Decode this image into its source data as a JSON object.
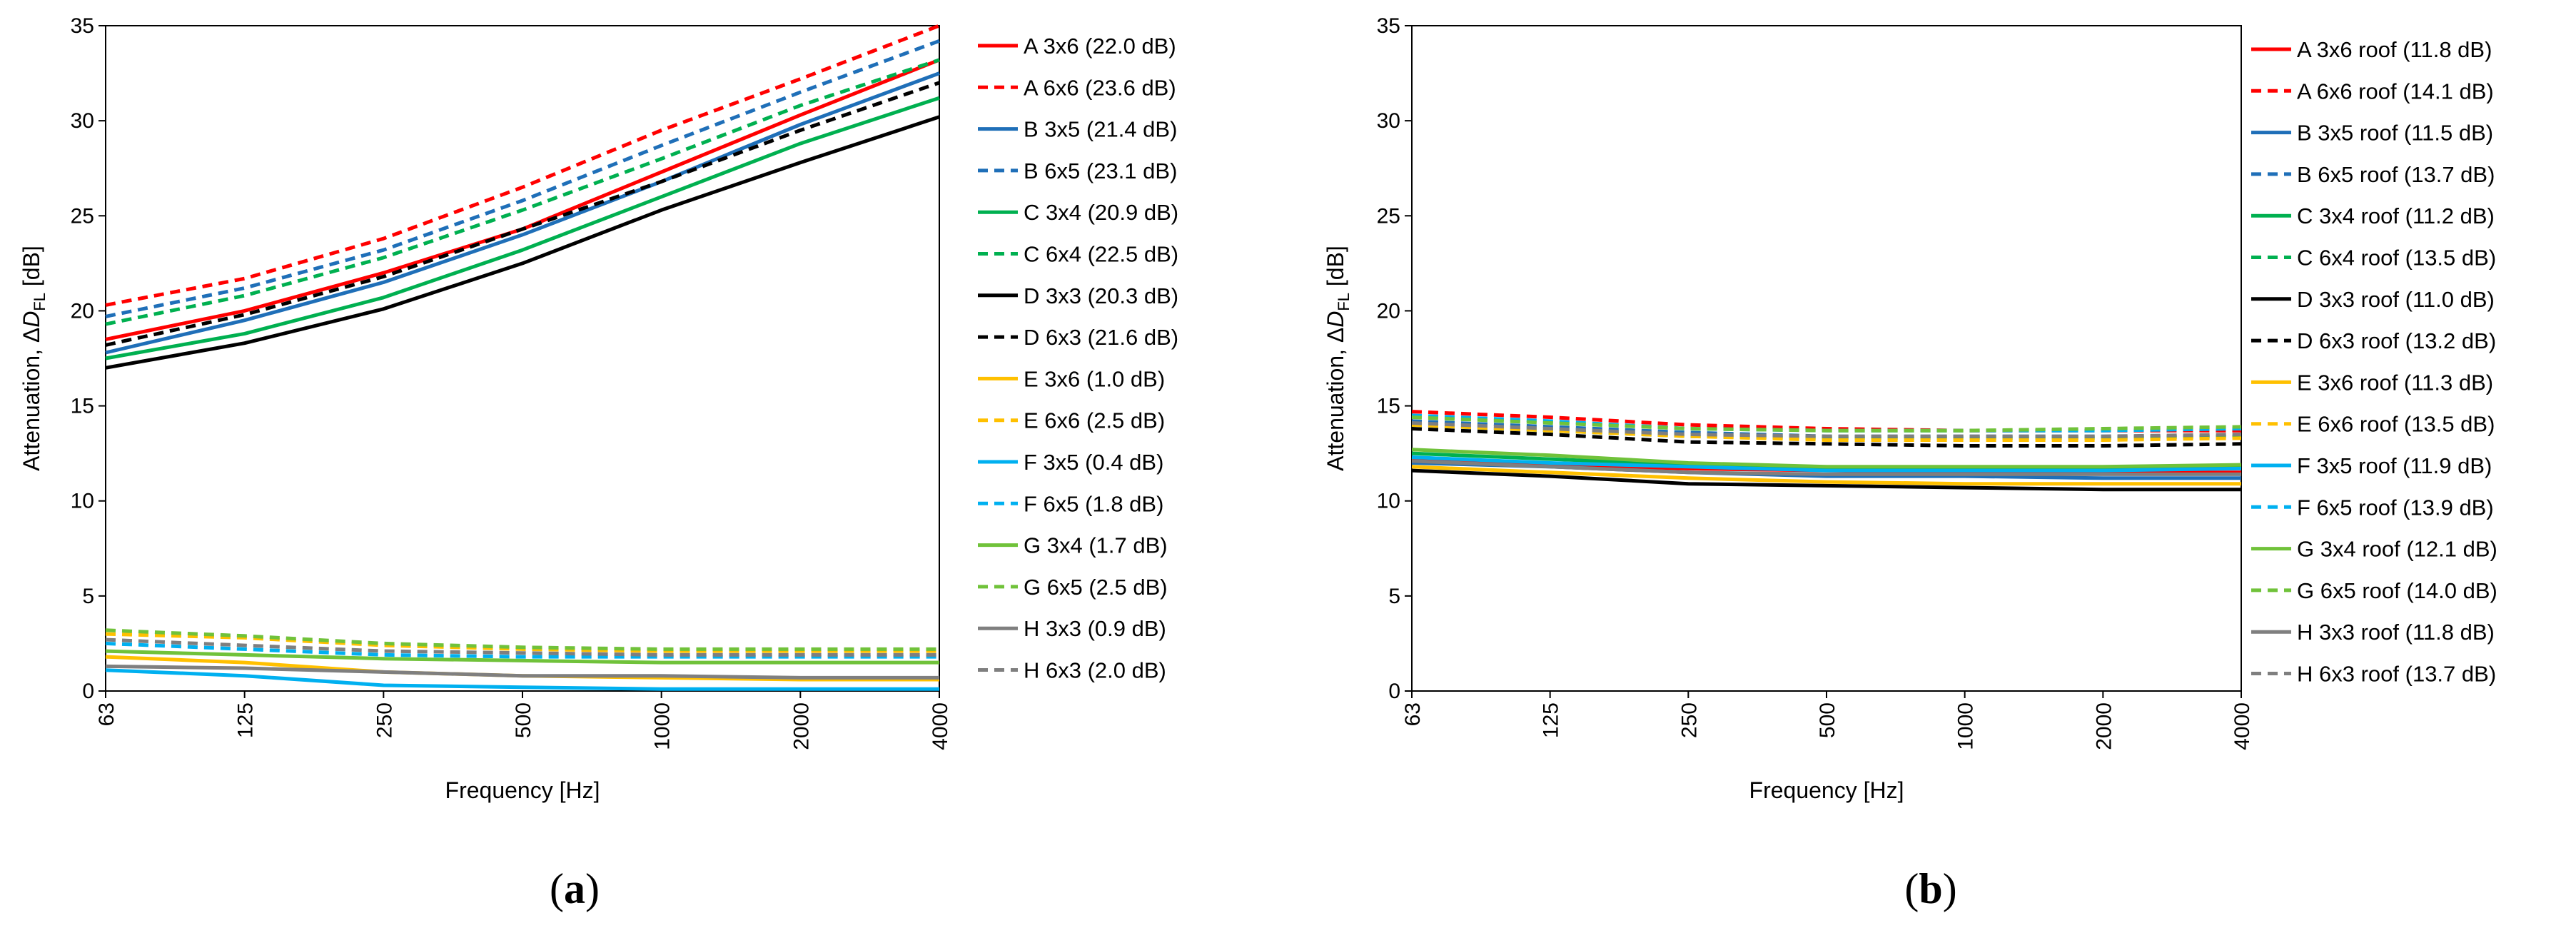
{
  "chart_data": [
    {
      "type": "line",
      "panel_label": "(a)",
      "panel_letter": "a",
      "xlabel": "Frequency [Hz]",
      "ylabel": "Attenuation, ΔD",
      "ylabel_sub": "FL",
      "ylabel_unit": " [dB]",
      "ylim": [
        0,
        35
      ],
      "yticks": [
        0,
        5,
        10,
        15,
        20,
        25,
        30,
        35
      ],
      "categories": [
        "63",
        "125",
        "250",
        "500",
        "1000",
        "2000",
        "4000"
      ],
      "legend_position": "right",
      "series": [
        {
          "name": "A 3x6 (22.0 dB)",
          "color": "#ff0000",
          "dash": false,
          "values": [
            18.5,
            20.0,
            22.0,
            24.3,
            27.3,
            30.3,
            33.2
          ]
        },
        {
          "name": "A 6x6 (23.6 dB)",
          "color": "#ff0000",
          "dash": true,
          "values": [
            20.3,
            21.7,
            23.8,
            26.5,
            29.5,
            32.2,
            35.0
          ]
        },
        {
          "name": "B 3x5 (21.4 dB)",
          "color": "#1f6fb8",
          "dash": false,
          "values": [
            17.8,
            19.5,
            21.5,
            24.0,
            26.8,
            29.8,
            32.5
          ]
        },
        {
          "name": "B 6x5 (23.1 dB)",
          "color": "#1f6fb8",
          "dash": true,
          "values": [
            19.7,
            21.2,
            23.2,
            25.8,
            28.7,
            31.5,
            34.2
          ]
        },
        {
          "name": "C 3x4 (20.9 dB)",
          "color": "#00b050",
          "dash": false,
          "values": [
            17.5,
            18.8,
            20.7,
            23.2,
            26.0,
            28.8,
            31.2
          ]
        },
        {
          "name": "C 6x4 (22.5 dB)",
          "color": "#00b050",
          "dash": true,
          "values": [
            19.3,
            20.8,
            22.8,
            25.3,
            28.0,
            30.8,
            33.2
          ]
        },
        {
          "name": "D 3x3 (20.3 dB)",
          "color": "#000000",
          "dash": false,
          "values": [
            17.0,
            18.3,
            20.1,
            22.5,
            25.3,
            27.8,
            30.2
          ]
        },
        {
          "name": "D 6x3 (21.6 dB)",
          "color": "#000000",
          "dash": true,
          "values": [
            18.2,
            19.8,
            21.8,
            24.3,
            26.8,
            29.5,
            32.0
          ]
        },
        {
          "name": "E 3x6 (1.0 dB)",
          "color": "#ffc000",
          "dash": false,
          "values": [
            1.8,
            1.5,
            1.0,
            0.8,
            0.7,
            0.6,
            0.6
          ]
        },
        {
          "name": "E 6x6 (2.5 dB)",
          "color": "#ffc000",
          "dash": true,
          "values": [
            3.0,
            2.8,
            2.4,
            2.2,
            2.1,
            2.1,
            2.1
          ]
        },
        {
          "name": "F 3x5 (0.4 dB)",
          "color": "#00b0f0",
          "dash": false,
          "values": [
            1.1,
            0.8,
            0.3,
            0.2,
            0.1,
            0.1,
            0.1
          ]
        },
        {
          "name": "F 6x5 (1.8 dB)",
          "color": "#00b0f0",
          "dash": true,
          "values": [
            2.5,
            2.2,
            1.9,
            1.8,
            1.8,
            1.8,
            1.8
          ]
        },
        {
          "name": "G 3x4  (1.7 dB)",
          "color": "#70c23a",
          "dash": false,
          "values": [
            2.1,
            1.9,
            1.7,
            1.6,
            1.5,
            1.5,
            1.5
          ]
        },
        {
          "name": "G 6x5 (2.5 dB)",
          "color": "#70c23a",
          "dash": true,
          "values": [
            3.2,
            2.9,
            2.5,
            2.3,
            2.2,
            2.2,
            2.2
          ]
        },
        {
          "name": "H 3x3 (0.9 dB)",
          "color": "#7f7f7f",
          "dash": false,
          "values": [
            1.3,
            1.2,
            1.0,
            0.8,
            0.8,
            0.7,
            0.7
          ]
        },
        {
          "name": "H 6x3 (2.0 dB)",
          "color": "#7f7f7f",
          "dash": true,
          "values": [
            2.7,
            2.4,
            2.1,
            2.0,
            1.9,
            1.9,
            1.9
          ]
        }
      ]
    },
    {
      "type": "line",
      "panel_label": "(b)",
      "panel_letter": "b",
      "xlabel": "Frequency [Hz]",
      "ylabel": "Attenuation, ΔD",
      "ylabel_sub": "FL",
      "ylabel_unit": " [dB]",
      "ylim": [
        0,
        35
      ],
      "yticks": [
        0,
        5,
        10,
        15,
        20,
        25,
        30,
        35
      ],
      "categories": [
        "63",
        "125",
        "250",
        "500",
        "1000",
        "2000",
        "4000"
      ],
      "legend_position": "right",
      "series": [
        {
          "name": "A 3x6 roof (11.8 dB)",
          "color": "#ff0000",
          "dash": false,
          "values": [
            12.2,
            11.9,
            11.7,
            11.6,
            11.5,
            11.5,
            11.5
          ]
        },
        {
          "name": "A 6x6 roof (14.1 dB)",
          "color": "#ff0000",
          "dash": true,
          "values": [
            14.7,
            14.4,
            14.0,
            13.8,
            13.7,
            13.7,
            13.7
          ]
        },
        {
          "name": "B 3x5 roof (11.5 dB)",
          "color": "#1f6fb8",
          "dash": false,
          "values": [
            12.0,
            11.8,
            11.5,
            11.3,
            11.3,
            11.2,
            11.2
          ]
        },
        {
          "name": "B 6x5 roof (13.7 dB)",
          "color": "#1f6fb8",
          "dash": true,
          "values": [
            14.2,
            13.9,
            13.6,
            13.4,
            13.4,
            13.4,
            13.4
          ]
        },
        {
          "name": "C 3x4 roof (11.2 dB)",
          "color": "#00b050",
          "dash": false,
          "values": [
            12.5,
            12.2,
            11.9,
            11.7,
            11.7,
            11.7,
            11.8
          ]
        },
        {
          "name": "C 6x4 roof (13.5 dB)",
          "color": "#00b050",
          "dash": true,
          "values": [
            14.0,
            13.7,
            13.4,
            13.3,
            13.3,
            13.3,
            13.4
          ]
        },
        {
          "name": "D 3x3 roof (11.0 dB)",
          "color": "#000000",
          "dash": false,
          "values": [
            11.6,
            11.3,
            10.9,
            10.8,
            10.7,
            10.6,
            10.6
          ]
        },
        {
          "name": "D 6x3 roof (13.2 dB)",
          "color": "#000000",
          "dash": true,
          "values": [
            13.8,
            13.5,
            13.1,
            13.0,
            12.9,
            12.9,
            13.0
          ]
        },
        {
          "name": "E 3x6 roof (11.3 dB)",
          "color": "#ffc000",
          "dash": false,
          "values": [
            11.8,
            11.5,
            11.2,
            11.0,
            10.9,
            10.9,
            10.9
          ]
        },
        {
          "name": "E 6x6 roof (13.5 dB)",
          "color": "#ffc000",
          "dash": true,
          "values": [
            14.0,
            13.7,
            13.4,
            13.2,
            13.2,
            13.2,
            13.3
          ]
        },
        {
          "name": "F 3x5 roof (11.9 dB)",
          "color": "#00b0f0",
          "dash": false,
          "values": [
            12.3,
            12.0,
            11.8,
            11.6,
            11.6,
            11.6,
            11.7
          ]
        },
        {
          "name": "F 6x5 roof (13.9 dB)",
          "color": "#00b0f0",
          "dash": true,
          "values": [
            14.5,
            14.2,
            13.8,
            13.7,
            13.7,
            13.7,
            13.8
          ]
        },
        {
          "name": "G 3x4 roof (12.1 dB)",
          "color": "#70c23a",
          "dash": false,
          "values": [
            12.7,
            12.4,
            12.0,
            11.8,
            11.8,
            11.8,
            11.9
          ]
        },
        {
          "name": "G 6x5 roof (14.0 dB)",
          "color": "#70c23a",
          "dash": true,
          "values": [
            14.4,
            14.1,
            13.8,
            13.7,
            13.7,
            13.8,
            13.9
          ]
        },
        {
          "name": "H 3x3 roof (11.8 dB)",
          "color": "#7f7f7f",
          "dash": false,
          "values": [
            12.1,
            11.8,
            11.5,
            11.4,
            11.4,
            11.4,
            11.4
          ]
        },
        {
          "name": "H 6x3 roof (13.7 dB)",
          "color": "#7f7f7f",
          "dash": true,
          "values": [
            14.1,
            13.8,
            13.5,
            13.4,
            13.4,
            13.4,
            13.5
          ]
        }
      ]
    }
  ]
}
